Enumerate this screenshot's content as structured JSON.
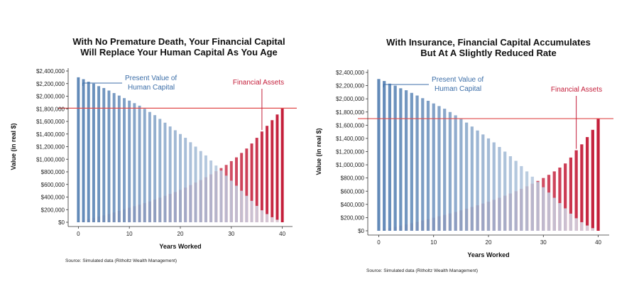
{
  "colors": {
    "human": "#3c6ea8",
    "financial": "#c41e3a",
    "refline": "#e04b4b",
    "axis": "#333333"
  },
  "chart_data": [
    {
      "type": "bar",
      "title_lines": [
        "With No Premature Death, Your Financial Capital",
        "Will Replace Your Human Capital As You Age"
      ],
      "xlabel": "Years Worked",
      "ylabel": "Value (in real $)",
      "xlim": [
        -2,
        42
      ],
      "ylim": [
        0,
        2400000
      ],
      "xticks": [
        0,
        10,
        20,
        30,
        40
      ],
      "yticks": [
        0,
        200000,
        400000,
        600000,
        800000,
        1000000,
        1200000,
        1400000,
        1600000,
        1800000,
        2000000,
        2200000,
        2400000
      ],
      "ytick_labels": [
        "$0",
        "$200,000",
        "$400,000",
        "$600,000",
        "$800,000",
        "$1,000,000",
        "$1,200,000",
        "$1,400,000",
        "$1,600,000",
        "$1,800,000",
        "$2,000,000",
        "$2,200,000",
        "$2,400,000"
      ],
      "x": [
        0,
        1,
        2,
        3,
        4,
        5,
        6,
        7,
        8,
        9,
        10,
        11,
        12,
        13,
        14,
        15,
        16,
        17,
        18,
        19,
        20,
        21,
        22,
        23,
        24,
        25,
        26,
        27,
        28,
        29,
        30,
        31,
        32,
        33,
        34,
        35,
        36,
        37,
        38,
        39,
        40
      ],
      "series": [
        {
          "name": "Present Value of Human Capital",
          "values": [
            2300000,
            2270000,
            2230000,
            2200000,
            2160000,
            2130000,
            2090000,
            2050000,
            2010000,
            1970000,
            1930000,
            1890000,
            1850000,
            1800000,
            1750000,
            1700000,
            1640000,
            1580000,
            1520000,
            1460000,
            1400000,
            1340000,
            1270000,
            1200000,
            1130000,
            1060000,
            980000,
            900000,
            820000,
            740000,
            660000,
            580000,
            500000,
            420000,
            340000,
            260000,
            190000,
            130000,
            80000,
            40000,
            0
          ]
        },
        {
          "name": "Financial Assets",
          "values": [
            10000,
            30000,
            50000,
            70000,
            90000,
            110000,
            130000,
            155000,
            180000,
            205000,
            230000,
            255000,
            280000,
            305000,
            330000,
            360000,
            390000,
            420000,
            450000,
            480000,
            515000,
            550000,
            590000,
            630000,
            670000,
            715000,
            760000,
            810000,
            860000,
            910000,
            970000,
            1030000,
            1100000,
            1170000,
            1250000,
            1340000,
            1440000,
            1530000,
            1620000,
            1710000,
            1810000
          ]
        }
      ],
      "reference_line_y": 1810000,
      "annotations": [
        {
          "lines": [
            "Present Value of",
            "Human Capital"
          ],
          "series": "human"
        },
        {
          "lines": [
            "Financial Assets"
          ],
          "series": "financial"
        }
      ],
      "source": "Source: Simulated data (Ritholtz Wealth Management)",
      "grid": false
    },
    {
      "type": "bar",
      "title_lines": [
        "With Insurance, Financial Capital Accumulates",
        "But At A Slightly Reduced Rate"
      ],
      "xlabel": "Years Worked",
      "ylabel": "Value (in real $)",
      "xlim": [
        -2,
        42
      ],
      "ylim": [
        0,
        2400000
      ],
      "xticks": [
        0,
        10,
        20,
        30,
        40
      ],
      "yticks": [
        0,
        200000,
        400000,
        600000,
        800000,
        1000000,
        1200000,
        1400000,
        1600000,
        1800000,
        2000000,
        2200000,
        2400000
      ],
      "ytick_labels": [
        "$0",
        "$200,000",
        "$400,000",
        "$600,000",
        "$800,000",
        "$1,000,000",
        "$1,200,000",
        "$1,400,000",
        "$1,600,000",
        "$1,800,000",
        "$2,000,000",
        "$2,200,000",
        "$2,400,000"
      ],
      "x": [
        0,
        1,
        2,
        3,
        4,
        5,
        6,
        7,
        8,
        9,
        10,
        11,
        12,
        13,
        14,
        15,
        16,
        17,
        18,
        19,
        20,
        21,
        22,
        23,
        24,
        25,
        26,
        27,
        28,
        29,
        30,
        31,
        32,
        33,
        34,
        35,
        36,
        37,
        38,
        39,
        40
      ],
      "series": [
        {
          "name": "Present Value of Human Capital",
          "values": [
            2300000,
            2270000,
            2230000,
            2200000,
            2160000,
            2130000,
            2090000,
            2050000,
            2010000,
            1970000,
            1930000,
            1890000,
            1850000,
            1800000,
            1750000,
            1700000,
            1640000,
            1580000,
            1520000,
            1460000,
            1400000,
            1340000,
            1270000,
            1200000,
            1130000,
            1060000,
            980000,
            900000,
            820000,
            740000,
            660000,
            580000,
            500000,
            420000,
            340000,
            260000,
            190000,
            130000,
            80000,
            40000,
            0
          ]
        },
        {
          "name": "Financial Assets",
          "values": [
            8000,
            25000,
            42000,
            60000,
            78000,
            96000,
            115000,
            135000,
            155000,
            175000,
            197000,
            219000,
            241000,
            263000,
            286000,
            310000,
            335000,
            360000,
            386000,
            413000,
            440000,
            470000,
            500000,
            532000,
            565000,
            600000,
            636000,
            674000,
            714000,
            756000,
            800000,
            848000,
            900000,
            958000,
            1020000,
            1110000,
            1220000,
            1310000,
            1420000,
            1530000,
            1700000
          ]
        }
      ],
      "reference_line_y": 1700000,
      "annotations": [
        {
          "lines": [
            "Present Value of",
            "Human Capital"
          ],
          "series": "human"
        },
        {
          "lines": [
            "Financial Assets"
          ],
          "series": "financial"
        }
      ],
      "source": "Source: Simulated data (Ritholtz Wealth Management)",
      "grid": false
    }
  ]
}
